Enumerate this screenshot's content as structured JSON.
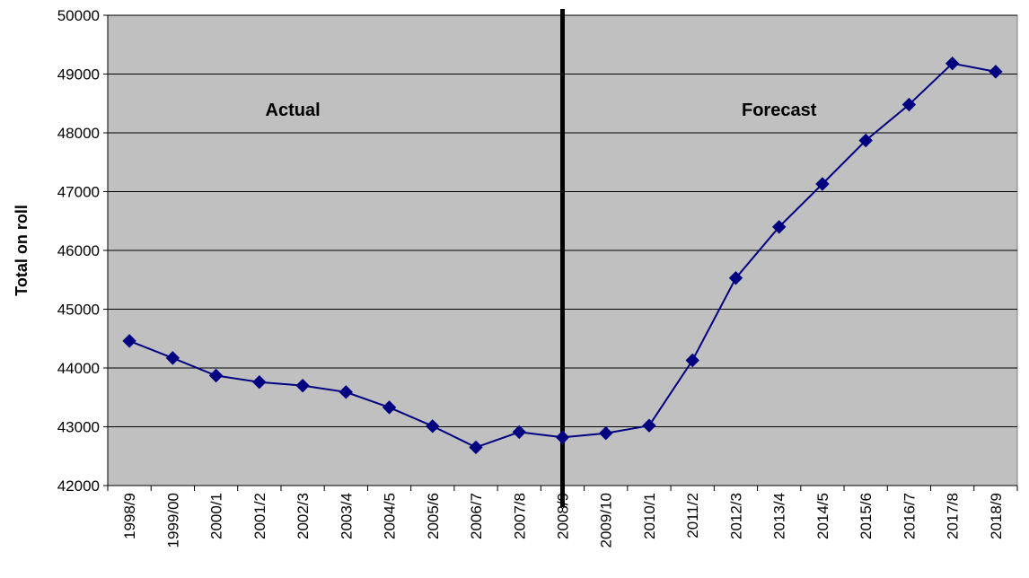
{
  "chart_data": {
    "type": "line",
    "ylabel": "Total on roll",
    "ylim": [
      42000,
      50000
    ],
    "yticks": [
      42000,
      43000,
      44000,
      45000,
      46000,
      47000,
      48000,
      49000,
      50000
    ],
    "grid": true,
    "divider_after_category": "2008/9",
    "annotations": [
      "Actual",
      "Forecast"
    ],
    "colors": {
      "series": "#000080",
      "plot_bg": "#c0c0c0",
      "grid": "#000000",
      "divider": "#000000"
    },
    "categories": [
      "1998/9",
      "1999/00",
      "2000/1",
      "2001/2",
      "2002/3",
      "2003/4",
      "2004/5",
      "2005/6",
      "2006/7",
      "2007/8",
      "2008/9",
      "2009/10",
      "2010/1",
      "2011/2",
      "2012/3",
      "2013/4",
      "2014/5",
      "2015/6",
      "2016/7",
      "2017/8",
      "2018/9"
    ],
    "series": [
      {
        "values": [
          44460,
          44170,
          43870,
          43760,
          43700,
          43590,
          43330,
          43010,
          42650,
          42910,
          42820,
          42890,
          43020,
          44130,
          45530,
          46400,
          47130,
          47870,
          48480,
          49180,
          49040
        ]
      }
    ]
  }
}
